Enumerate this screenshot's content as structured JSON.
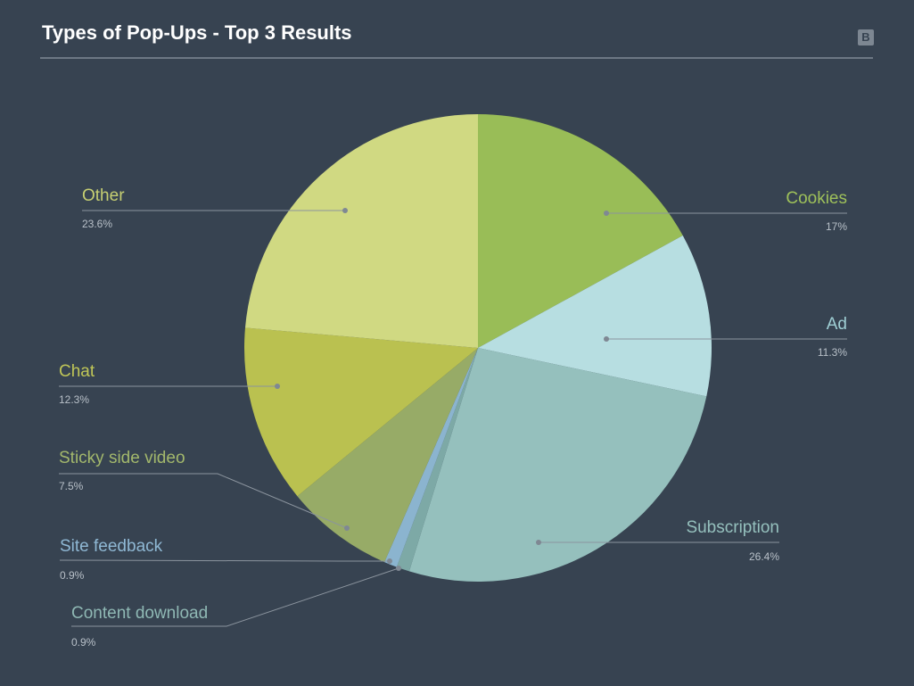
{
  "logo_letter": "B",
  "chart_data": {
    "type": "pie",
    "title": "Types of Pop-Ups - Top 3 Results",
    "slices": [
      {
        "label": "Cookies",
        "value": 17,
        "value_text": "17%",
        "color": "#99bd57",
        "label_color": "#9ec15a"
      },
      {
        "label": "Ad",
        "value": 11.3,
        "value_text": "11.3%",
        "color": "#b7dee1",
        "label_color": "#9fcfd4"
      },
      {
        "label": "Subscription",
        "value": 26.4,
        "value_text": "26.4%",
        "color": "#95c0bd",
        "label_color": "#95c0bd"
      },
      {
        "label": "Content download",
        "value": 0.9,
        "value_text": "0.9%",
        "color": "#7da9a6",
        "label_color": "#8fb8b4"
      },
      {
        "label": "Site feedback",
        "value": 0.9,
        "value_text": "0.9%",
        "color": "#8bb4cf",
        "label_color": "#8fb8d4"
      },
      {
        "label": "Sticky side video",
        "value": 7.5,
        "value_text": "7.5%",
        "color": "#97ab67",
        "label_color": "#a3b86c"
      },
      {
        "label": "Chat",
        "value": 12.3,
        "value_text": "12.3%",
        "color": "#bac150",
        "label_color": "#c0c657"
      },
      {
        "label": "Other",
        "value": 23.6,
        "value_text": "23.6%",
        "color": "#d0d982",
        "label_color": "#c6cf72"
      }
    ],
    "start_angle_deg": 0,
    "direction": "clockwise",
    "legend": "none"
  }
}
